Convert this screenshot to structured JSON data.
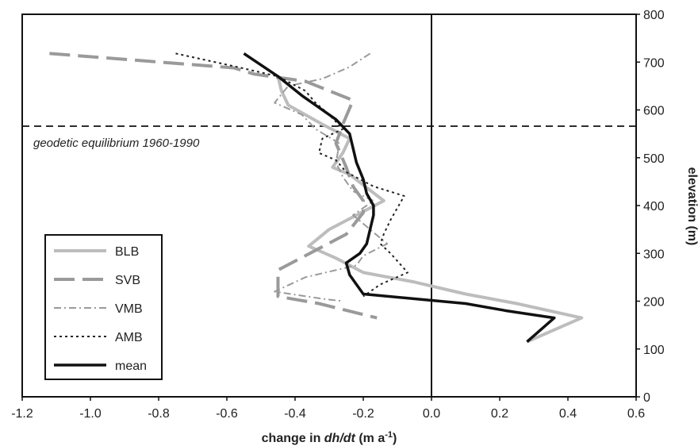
{
  "chart_data": {
    "type": "line",
    "xlabel_prefix": "change in ",
    "xlabel_italic": "dh/dt",
    "xlabel_unit": " (m a",
    "xlabel_sup": "-1",
    "xlabel_close": ")",
    "ylabel": "elevation (m)",
    "xlim": [
      -1.2,
      0.6
    ],
    "ylim": [
      0,
      800
    ],
    "x_ticks": [
      "-1.2",
      "-1.0",
      "-0.8",
      "-0.6",
      "-0.4",
      "-0.2",
      "0.0",
      "0.2",
      "0.4",
      "0.6"
    ],
    "x_tick_values": [
      -1.2,
      -1.0,
      -0.8,
      -0.6,
      -0.4,
      -0.2,
      0.0,
      0.2,
      0.4,
      0.6
    ],
    "y_ticks": [
      "0",
      "100",
      "200",
      "300",
      "400",
      "500",
      "600",
      "700",
      "800"
    ],
    "y_tick_values": [
      0,
      100,
      200,
      300,
      400,
      500,
      600,
      700,
      800
    ],
    "y_axis_side": "right",
    "grid": false,
    "legend_placement": "bottom-left",
    "annotation": {
      "text": "geodetic equilibrium 1960-1990",
      "y": 566
    },
    "series": [
      {
        "name": "BLB",
        "color": "#bdbdbd",
        "style": "solid",
        "points": [
          [
            -0.45,
            670
          ],
          [
            -0.44,
            640
          ],
          [
            -0.42,
            610
          ],
          [
            -0.32,
            570
          ],
          [
            -0.24,
            540
          ],
          [
            -0.26,
            510
          ],
          [
            -0.29,
            480
          ],
          [
            -0.24,
            465
          ],
          [
            -0.14,
            410
          ],
          [
            -0.22,
            380
          ],
          [
            -0.3,
            350
          ],
          [
            -0.36,
            315
          ],
          [
            -0.28,
            290
          ],
          [
            -0.2,
            260
          ],
          [
            -0.05,
            240
          ],
          [
            0.1,
            215
          ],
          [
            0.25,
            195
          ],
          [
            0.44,
            165
          ],
          [
            0.28,
            115
          ]
        ]
      },
      {
        "name": "SVB",
        "color": "#9a9a9a",
        "style": "longdash",
        "points": [
          [
            -1.12,
            718
          ],
          [
            -0.58,
            688
          ],
          [
            -0.52,
            675
          ],
          [
            -0.37,
            660
          ],
          [
            -0.23,
            620
          ],
          [
            -0.26,
            570
          ],
          [
            -0.28,
            530
          ],
          [
            -0.25,
            480
          ],
          [
            -0.23,
            440
          ],
          [
            -0.2,
            410
          ],
          [
            -0.2,
            385
          ],
          [
            -0.25,
            340
          ],
          [
            -0.33,
            310
          ],
          [
            -0.45,
            265
          ],
          [
            -0.45,
            210
          ],
          [
            -0.33,
            195
          ],
          [
            -0.16,
            165
          ]
        ]
      },
      {
        "name": "VMB",
        "color": "#9a9a9a",
        "style": "dashdot",
        "points": [
          [
            -0.18,
            718
          ],
          [
            -0.24,
            690
          ],
          [
            -0.32,
            665
          ],
          [
            -0.42,
            650
          ],
          [
            -0.46,
            615
          ],
          [
            -0.38,
            590
          ],
          [
            -0.34,
            560
          ],
          [
            -0.27,
            530
          ],
          [
            -0.28,
            490
          ],
          [
            -0.26,
            460
          ],
          [
            -0.23,
            430
          ],
          [
            -0.17,
            410
          ],
          [
            -0.23,
            380
          ],
          [
            -0.13,
            320
          ],
          [
            -0.2,
            295
          ],
          [
            -0.22,
            275
          ],
          [
            -0.37,
            250
          ],
          [
            -0.46,
            220
          ],
          [
            -0.32,
            205
          ],
          [
            -0.26,
            200
          ]
        ]
      },
      {
        "name": "AMB",
        "color": "#222222",
        "style": "dotted",
        "points": [
          [
            -0.75,
            718
          ],
          [
            -0.57,
            690
          ],
          [
            -0.45,
            670
          ],
          [
            -0.37,
            640
          ],
          [
            -0.34,
            615
          ],
          [
            -0.3,
            590
          ],
          [
            -0.26,
            560
          ],
          [
            -0.32,
            540
          ],
          [
            -0.33,
            510
          ],
          [
            -0.28,
            495
          ],
          [
            -0.25,
            470
          ],
          [
            -0.17,
            440
          ],
          [
            -0.08,
            420
          ],
          [
            -0.12,
            370
          ],
          [
            -0.14,
            340
          ],
          [
            -0.15,
            320
          ],
          [
            -0.12,
            300
          ],
          [
            -0.07,
            260
          ],
          [
            -0.15,
            235
          ],
          [
            -0.2,
            210
          ]
        ]
      },
      {
        "name": "mean",
        "color": "#111111",
        "style": "solid-thick",
        "points": [
          [
            -0.55,
            718
          ],
          [
            -0.45,
            670
          ],
          [
            -0.38,
            630
          ],
          [
            -0.34,
            610
          ],
          [
            -0.28,
            580
          ],
          [
            -0.24,
            550
          ],
          [
            -0.23,
            520
          ],
          [
            -0.22,
            490
          ],
          [
            -0.2,
            455
          ],
          [
            -0.19,
            425
          ],
          [
            -0.17,
            400
          ],
          [
            -0.17,
            380
          ],
          [
            -0.18,
            350
          ],
          [
            -0.19,
            320
          ],
          [
            -0.21,
            300
          ],
          [
            -0.25,
            280
          ],
          [
            -0.24,
            255
          ],
          [
            -0.2,
            215
          ],
          [
            -0.05,
            205
          ],
          [
            0.1,
            195
          ],
          [
            0.22,
            180
          ],
          [
            0.36,
            165
          ],
          [
            0.28,
            115
          ]
        ]
      }
    ]
  }
}
